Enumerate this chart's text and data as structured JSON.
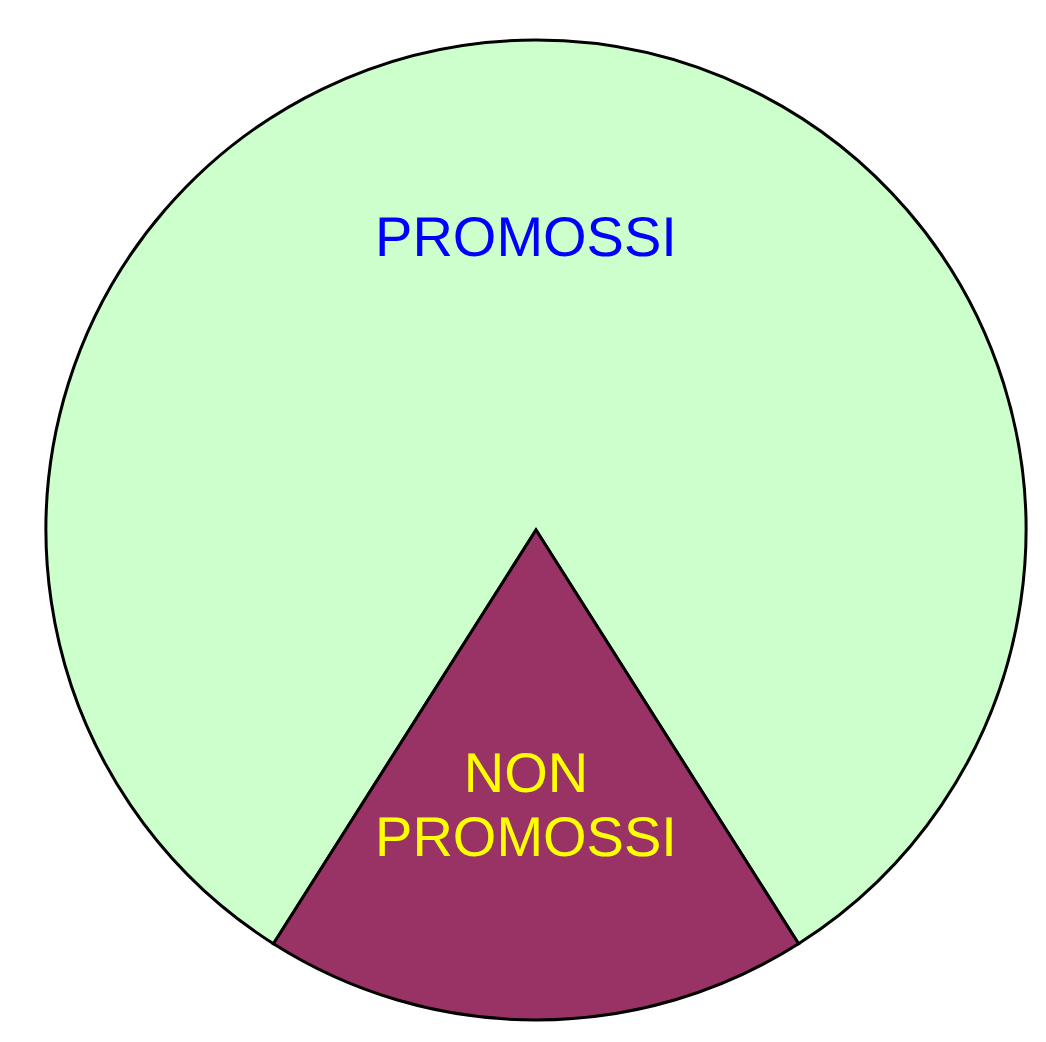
{
  "chart_data": {
    "type": "pie",
    "categories": [
      "PROMOSSI",
      "NON PROMOSSI"
    ],
    "values": [
      82,
      18
    ],
    "colors": [
      "#ccffcc",
      "#993366"
    ],
    "legend": false
  }
}
